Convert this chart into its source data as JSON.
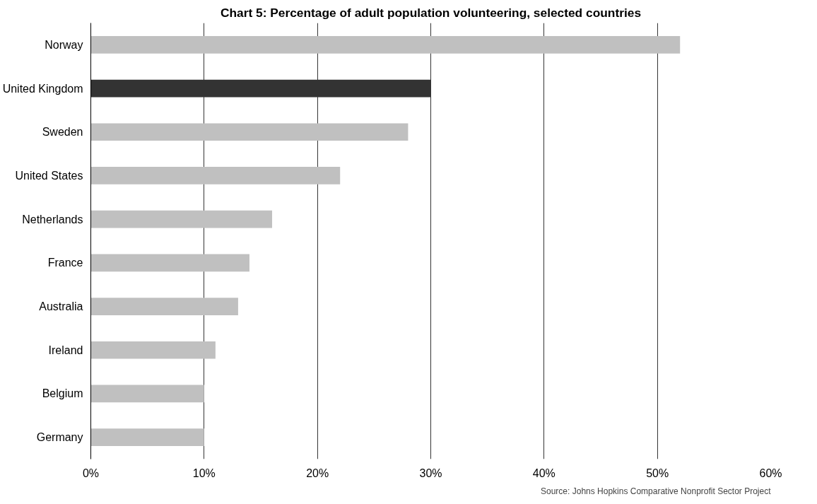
{
  "chart_data": {
    "type": "bar",
    "orientation": "horizontal",
    "title": "Chart 5: Percentage of adult population volunteering, selected countries",
    "categories": [
      "Norway",
      "United Kingdom",
      "Sweden",
      "United States",
      "Netherlands",
      "France",
      "Australia",
      "Ireland",
      "Belgium",
      "Germany"
    ],
    "values": [
      52,
      30,
      28,
      22,
      16,
      14,
      13,
      11,
      10,
      10
    ],
    "colors": [
      "#c0c0c0",
      "#333333",
      "#c0c0c0",
      "#c0c0c0",
      "#c0c0c0",
      "#c0c0c0",
      "#c0c0c0",
      "#c0c0c0",
      "#c0c0c0",
      "#c0c0c0"
    ],
    "xlim": [
      0,
      60
    ],
    "xticks": [
      {
        "value": 0,
        "label": "0%"
      },
      {
        "value": 10,
        "label": "10%"
      },
      {
        "value": 20,
        "label": "20%"
      },
      {
        "value": 30,
        "label": "30%"
      },
      {
        "value": 40,
        "label": "40%"
      },
      {
        "value": 50,
        "label": "50%"
      },
      {
        "value": 60,
        "label": "60%"
      }
    ],
    "grid": "x",
    "annotations": [
      "Source: Johns Hopkins Comparative Nonprofit Sector Project"
    ]
  }
}
